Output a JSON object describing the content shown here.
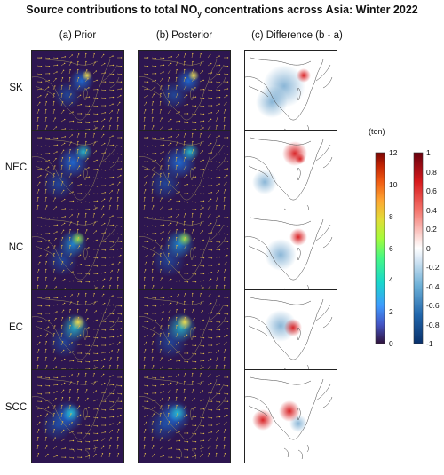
{
  "title_pre": "Source contributions to total NO",
  "title_sub": "y",
  "title_post": " concentrations across Asia: Winter 2022",
  "columns": [
    "(a) Prior",
    "(b) Posterior",
    "(c) Difference (b - a)"
  ],
  "rows": [
    "SK",
    "NEC",
    "NC",
    "EC",
    "SCC"
  ],
  "colorbar_unit": "(ton)",
  "colorbar_abs_ticks": [
    "12",
    "10",
    "8",
    "6",
    "4",
    "2",
    "0"
  ],
  "colorbar_diff_ticks": [
    "1",
    "0.8",
    "0.6",
    "0.4",
    "0.2",
    "0",
    "-0.2",
    "-0.4",
    "-0.6",
    "-0.8",
    "-1"
  ],
  "colors": {
    "map_background": "#2d1650",
    "wind_vector": "#d9b54a",
    "coastline": "#9a8a5a",
    "positive_diff": "#d7191c",
    "negative_diff": "#2c7bb6"
  },
  "chart_data": {
    "type": "heatmap",
    "title": "Source contributions to total NOy concentrations across Asia: Winter 2022",
    "panels_columns": [
      "(a) Prior",
      "(b) Posterior",
      "(c) Difference (b - a)"
    ],
    "panels_rows": [
      "SK",
      "NEC",
      "NC",
      "EC",
      "SCC"
    ],
    "colorbars": [
      {
        "unit": "(ton)",
        "range": [
          0,
          12
        ],
        "applies_to": [
          "(a) Prior",
          "(b) Posterior"
        ],
        "colormap": "turbo"
      },
      {
        "range": [
          -1,
          1
        ],
        "applies_to": [
          "(c) Difference (b - a)"
        ],
        "colormap": "blue-white-red"
      }
    ],
    "difference_sign_by_row": {
      "SK": "negative spread over China, strong positive over Korea",
      "NEC": "positive over northeast China, negative in southwest",
      "NC": "positive over north China, weak negative to the south",
      "EC": "positive over east China, weak negative around",
      "SCC": "positive over south-central China, weak positive to the west"
    }
  }
}
